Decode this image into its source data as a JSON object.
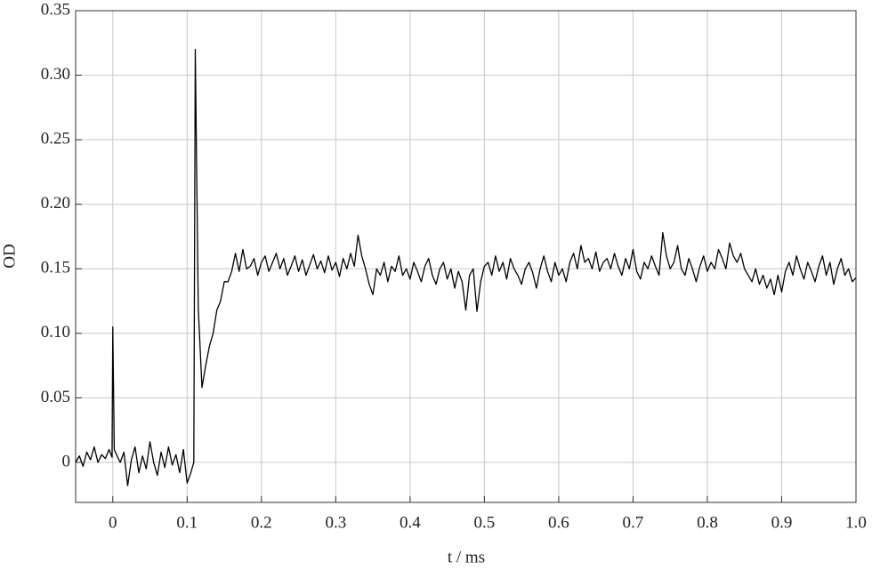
{
  "chart_data": {
    "type": "line",
    "x_label": "t / ms",
    "y_label": "OD",
    "x": [
      -0.05,
      -0.045,
      -0.04,
      -0.035,
      -0.03,
      -0.025,
      -0.02,
      -0.015,
      -0.01,
      -0.005,
      -0.001,
      0,
      0.002,
      0.005,
      0.01,
      0.015,
      0.02,
      0.025,
      0.03,
      0.035,
      0.04,
      0.045,
      0.05,
      0.055,
      0.06,
      0.065,
      0.07,
      0.075,
      0.08,
      0.085,
      0.09,
      0.095,
      0.1,
      0.105,
      0.109,
      0.111,
      0.115,
      0.12,
      0.125,
      0.13,
      0.135,
      0.14,
      0.145,
      0.15,
      0.155,
      0.16,
      0.165,
      0.17,
      0.175,
      0.18,
      0.185,
      0.19,
      0.195,
      0.2,
      0.205,
      0.21,
      0.215,
      0.22,
      0.225,
      0.23,
      0.235,
      0.24,
      0.245,
      0.25,
      0.255,
      0.26,
      0.265,
      0.27,
      0.275,
      0.28,
      0.285,
      0.29,
      0.295,
      0.3,
      0.305,
      0.31,
      0.315,
      0.32,
      0.325,
      0.33,
      0.335,
      0.34,
      0.345,
      0.35,
      0.355,
      0.36,
      0.365,
      0.37,
      0.375,
      0.38,
      0.385,
      0.39,
      0.395,
      0.4,
      0.405,
      0.41,
      0.415,
      0.42,
      0.425,
      0.43,
      0.435,
      0.44,
      0.445,
      0.45,
      0.455,
      0.46,
      0.465,
      0.47,
      0.475,
      0.48,
      0.485,
      0.49,
      0.495,
      0.5,
      0.505,
      0.51,
      0.515,
      0.52,
      0.525,
      0.53,
      0.535,
      0.54,
      0.545,
      0.55,
      0.555,
      0.56,
      0.565,
      0.57,
      0.575,
      0.58,
      0.585,
      0.59,
      0.595,
      0.6,
      0.605,
      0.61,
      0.615,
      0.62,
      0.625,
      0.63,
      0.635,
      0.64,
      0.645,
      0.65,
      0.655,
      0.66,
      0.665,
      0.67,
      0.675,
      0.68,
      0.685,
      0.69,
      0.695,
      0.7,
      0.705,
      0.71,
      0.715,
      0.72,
      0.725,
      0.73,
      0.735,
      0.74,
      0.745,
      0.75,
      0.755,
      0.76,
      0.765,
      0.77,
      0.775,
      0.78,
      0.785,
      0.79,
      0.795,
      0.8,
      0.805,
      0.81,
      0.815,
      0.82,
      0.825,
      0.83,
      0.835,
      0.84,
      0.845,
      0.85,
      0.855,
      0.86,
      0.865,
      0.87,
      0.875,
      0.88,
      0.885,
      0.89,
      0.895,
      0.9,
      0.905,
      0.91,
      0.915,
      0.92,
      0.925,
      0.93,
      0.935,
      0.94,
      0.945,
      0.95,
      0.955,
      0.96,
      0.965,
      0.97,
      0.975,
      0.98,
      0.985,
      0.99,
      0.995,
      1.0
    ],
    "series": [
      {
        "color": "#000000",
        "values": [
          0.0,
          0.005,
          -0.003,
          0.008,
          0.002,
          0.012,
          0.0,
          0.006,
          0.003,
          0.01,
          0.004,
          0.105,
          0.01,
          0.006,
          0.0,
          0.008,
          -0.018,
          0.002,
          0.012,
          -0.008,
          0.005,
          -0.005,
          0.016,
          0.0,
          -0.01,
          0.008,
          -0.004,
          0.012,
          -0.002,
          0.006,
          -0.008,
          0.01,
          -0.016,
          -0.008,
          0.0,
          0.32,
          0.12,
          0.058,
          0.075,
          0.09,
          0.1,
          0.118,
          0.125,
          0.14,
          0.14,
          0.148,
          0.162,
          0.148,
          0.165,
          0.15,
          0.152,
          0.158,
          0.145,
          0.155,
          0.16,
          0.148,
          0.155,
          0.162,
          0.15,
          0.158,
          0.145,
          0.152,
          0.16,
          0.148,
          0.157,
          0.145,
          0.153,
          0.161,
          0.15,
          0.156,
          0.147,
          0.16,
          0.149,
          0.155,
          0.144,
          0.158,
          0.15,
          0.162,
          0.152,
          0.176,
          0.16,
          0.15,
          0.138,
          0.13,
          0.15,
          0.145,
          0.155,
          0.14,
          0.152,
          0.148,
          0.16,
          0.145,
          0.15,
          0.142,
          0.155,
          0.148,
          0.14,
          0.152,
          0.158,
          0.145,
          0.138,
          0.15,
          0.155,
          0.142,
          0.15,
          0.135,
          0.148,
          0.14,
          0.118,
          0.145,
          0.15,
          0.117,
          0.14,
          0.152,
          0.155,
          0.145,
          0.16,
          0.148,
          0.155,
          0.142,
          0.158,
          0.15,
          0.145,
          0.138,
          0.15,
          0.155,
          0.147,
          0.135,
          0.15,
          0.16,
          0.148,
          0.14,
          0.155,
          0.145,
          0.15,
          0.14,
          0.155,
          0.162,
          0.15,
          0.168,
          0.155,
          0.158,
          0.15,
          0.163,
          0.148,
          0.155,
          0.158,
          0.15,
          0.162,
          0.152,
          0.145,
          0.158,
          0.15,
          0.165,
          0.148,
          0.142,
          0.155,
          0.15,
          0.16,
          0.152,
          0.145,
          0.178,
          0.16,
          0.15,
          0.155,
          0.168,
          0.15,
          0.145,
          0.158,
          0.15,
          0.14,
          0.152,
          0.16,
          0.148,
          0.155,
          0.15,
          0.165,
          0.158,
          0.15,
          0.17,
          0.16,
          0.155,
          0.162,
          0.15,
          0.145,
          0.14,
          0.15,
          0.138,
          0.145,
          0.135,
          0.142,
          0.13,
          0.145,
          0.132,
          0.148,
          0.155,
          0.145,
          0.16,
          0.15,
          0.142,
          0.155,
          0.148,
          0.14,
          0.152,
          0.16,
          0.145,
          0.155,
          0.138,
          0.15,
          0.158,
          0.145,
          0.15,
          0.14,
          0.143
        ]
      }
    ],
    "xlim": [
      -0.05,
      1.0
    ],
    "ylim": [
      -0.031,
      0.35
    ],
    "xticks": [
      0,
      0.1,
      0.2,
      0.3,
      0.4,
      0.5,
      0.6,
      0.7,
      0.8,
      0.9,
      {
        "value": 1,
        "label": "1.0"
      }
    ],
    "yticks": [
      0,
      0.05,
      {
        "value": 0.1,
        "label": "0.10"
      },
      0.15,
      {
        "value": 0.2,
        "label": "0.20"
      },
      0.25,
      {
        "value": 0.3,
        "label": "0.30"
      },
      0.35
    ],
    "grid": true
  }
}
